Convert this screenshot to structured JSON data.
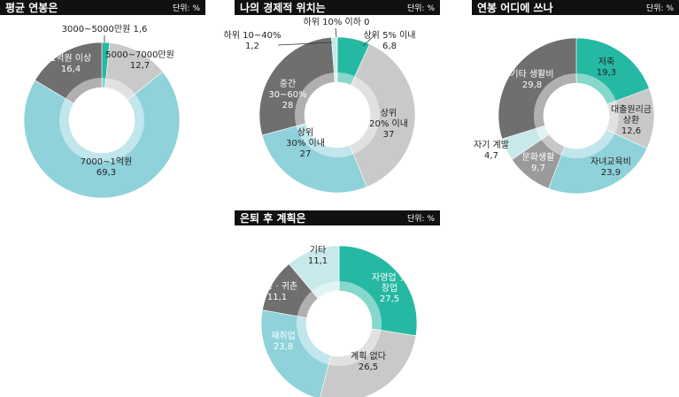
{
  "colors": {
    "teal": "#25b8a2",
    "light_gray": "#c9c9c9",
    "light_blue": "#8fd2da",
    "dark_gray": "#6f6f6f",
    "pale_blue": "#c8e9ea",
    "mid_gray": "#9a9a9a",
    "header_bg": "#111111"
  },
  "chart_data": [
    {
      "type": "pie",
      "title": "평균 연봉은",
      "unit_label": "단위: %",
      "slices": [
        {
          "label": "3000~5000만원",
          "value": 1.6,
          "value_text": "1,6",
          "color": "#25b8a2"
        },
        {
          "label": "5000~7000만원",
          "value": 12.7,
          "value_text": "12,7",
          "color": "#c9c9c9"
        },
        {
          "label": "7000~1억원",
          "value": 69.3,
          "value_text": "69,3",
          "color": "#8fd2da"
        },
        {
          "label": "1억원 이상",
          "value": 16.4,
          "value_text": "16,4",
          "color": "#6f6f6f"
        }
      ]
    },
    {
      "type": "pie",
      "title": "나의 경제적 위치는",
      "unit_label": "단위: %",
      "slices": [
        {
          "label": "상위 5% 이내",
          "value": 6.8,
          "value_text": "6,8",
          "color": "#25b8a2"
        },
        {
          "label": "상위 20% 이내",
          "value": 37,
          "value_text": "37",
          "color": "#c9c9c9"
        },
        {
          "label": "상위 30% 이내",
          "value": 27,
          "value_text": "27",
          "color": "#8fd2da"
        },
        {
          "label": "중간 30~60%",
          "value": 28,
          "value_text": "28",
          "color": "#6f6f6f"
        },
        {
          "label": "하위 10~40%",
          "value": 1.2,
          "value_text": "1,2",
          "color": "#c8e9ea"
        },
        {
          "label": "하위 10% 이하",
          "value": 0,
          "value_text": "0",
          "color": "#9a9a9a"
        }
      ]
    },
    {
      "type": "pie",
      "title": "연봉 어디에 쓰나",
      "unit_label": "단위: %",
      "slices": [
        {
          "label": "저축",
          "value": 19.3,
          "value_text": "19,3",
          "color": "#25b8a2"
        },
        {
          "label": "대출원리금 상환",
          "value": 12.6,
          "value_text": "12,6",
          "color": "#c9c9c9"
        },
        {
          "label": "자녀교육비",
          "value": 23.9,
          "value_text": "23,9",
          "color": "#8fd2da"
        },
        {
          "label": "문화생활",
          "value": 9.7,
          "value_text": "9,7",
          "color": "#9a9a9a"
        },
        {
          "label": "자기 계발",
          "value": 4.7,
          "value_text": "4,7",
          "color": "#c8e9ea"
        },
        {
          "label": "기타 생활비",
          "value": 29.8,
          "value_text": "29,8",
          "color": "#6f6f6f"
        }
      ]
    },
    {
      "type": "pie",
      "title": "은퇴 후 계획은",
      "unit_label": "단위: %",
      "slices": [
        {
          "label": "자영업 및 창업",
          "value": 27.5,
          "value_text": "27,5",
          "color": "#25b8a2"
        },
        {
          "label": "계획 없다",
          "value": 26.5,
          "value_text": "26,5",
          "color": "#c9c9c9"
        },
        {
          "label": "재취업",
          "value": 23.8,
          "value_text": "23,8",
          "color": "#8fd2da"
        },
        {
          "label": "귀농 · 귀촌",
          "value": 11.1,
          "value_text": "11,1",
          "color": "#6f6f6f"
        },
        {
          "label": "기타",
          "value": 11.1,
          "value_text": "11,1",
          "color": "#c8e9ea"
        }
      ]
    }
  ]
}
